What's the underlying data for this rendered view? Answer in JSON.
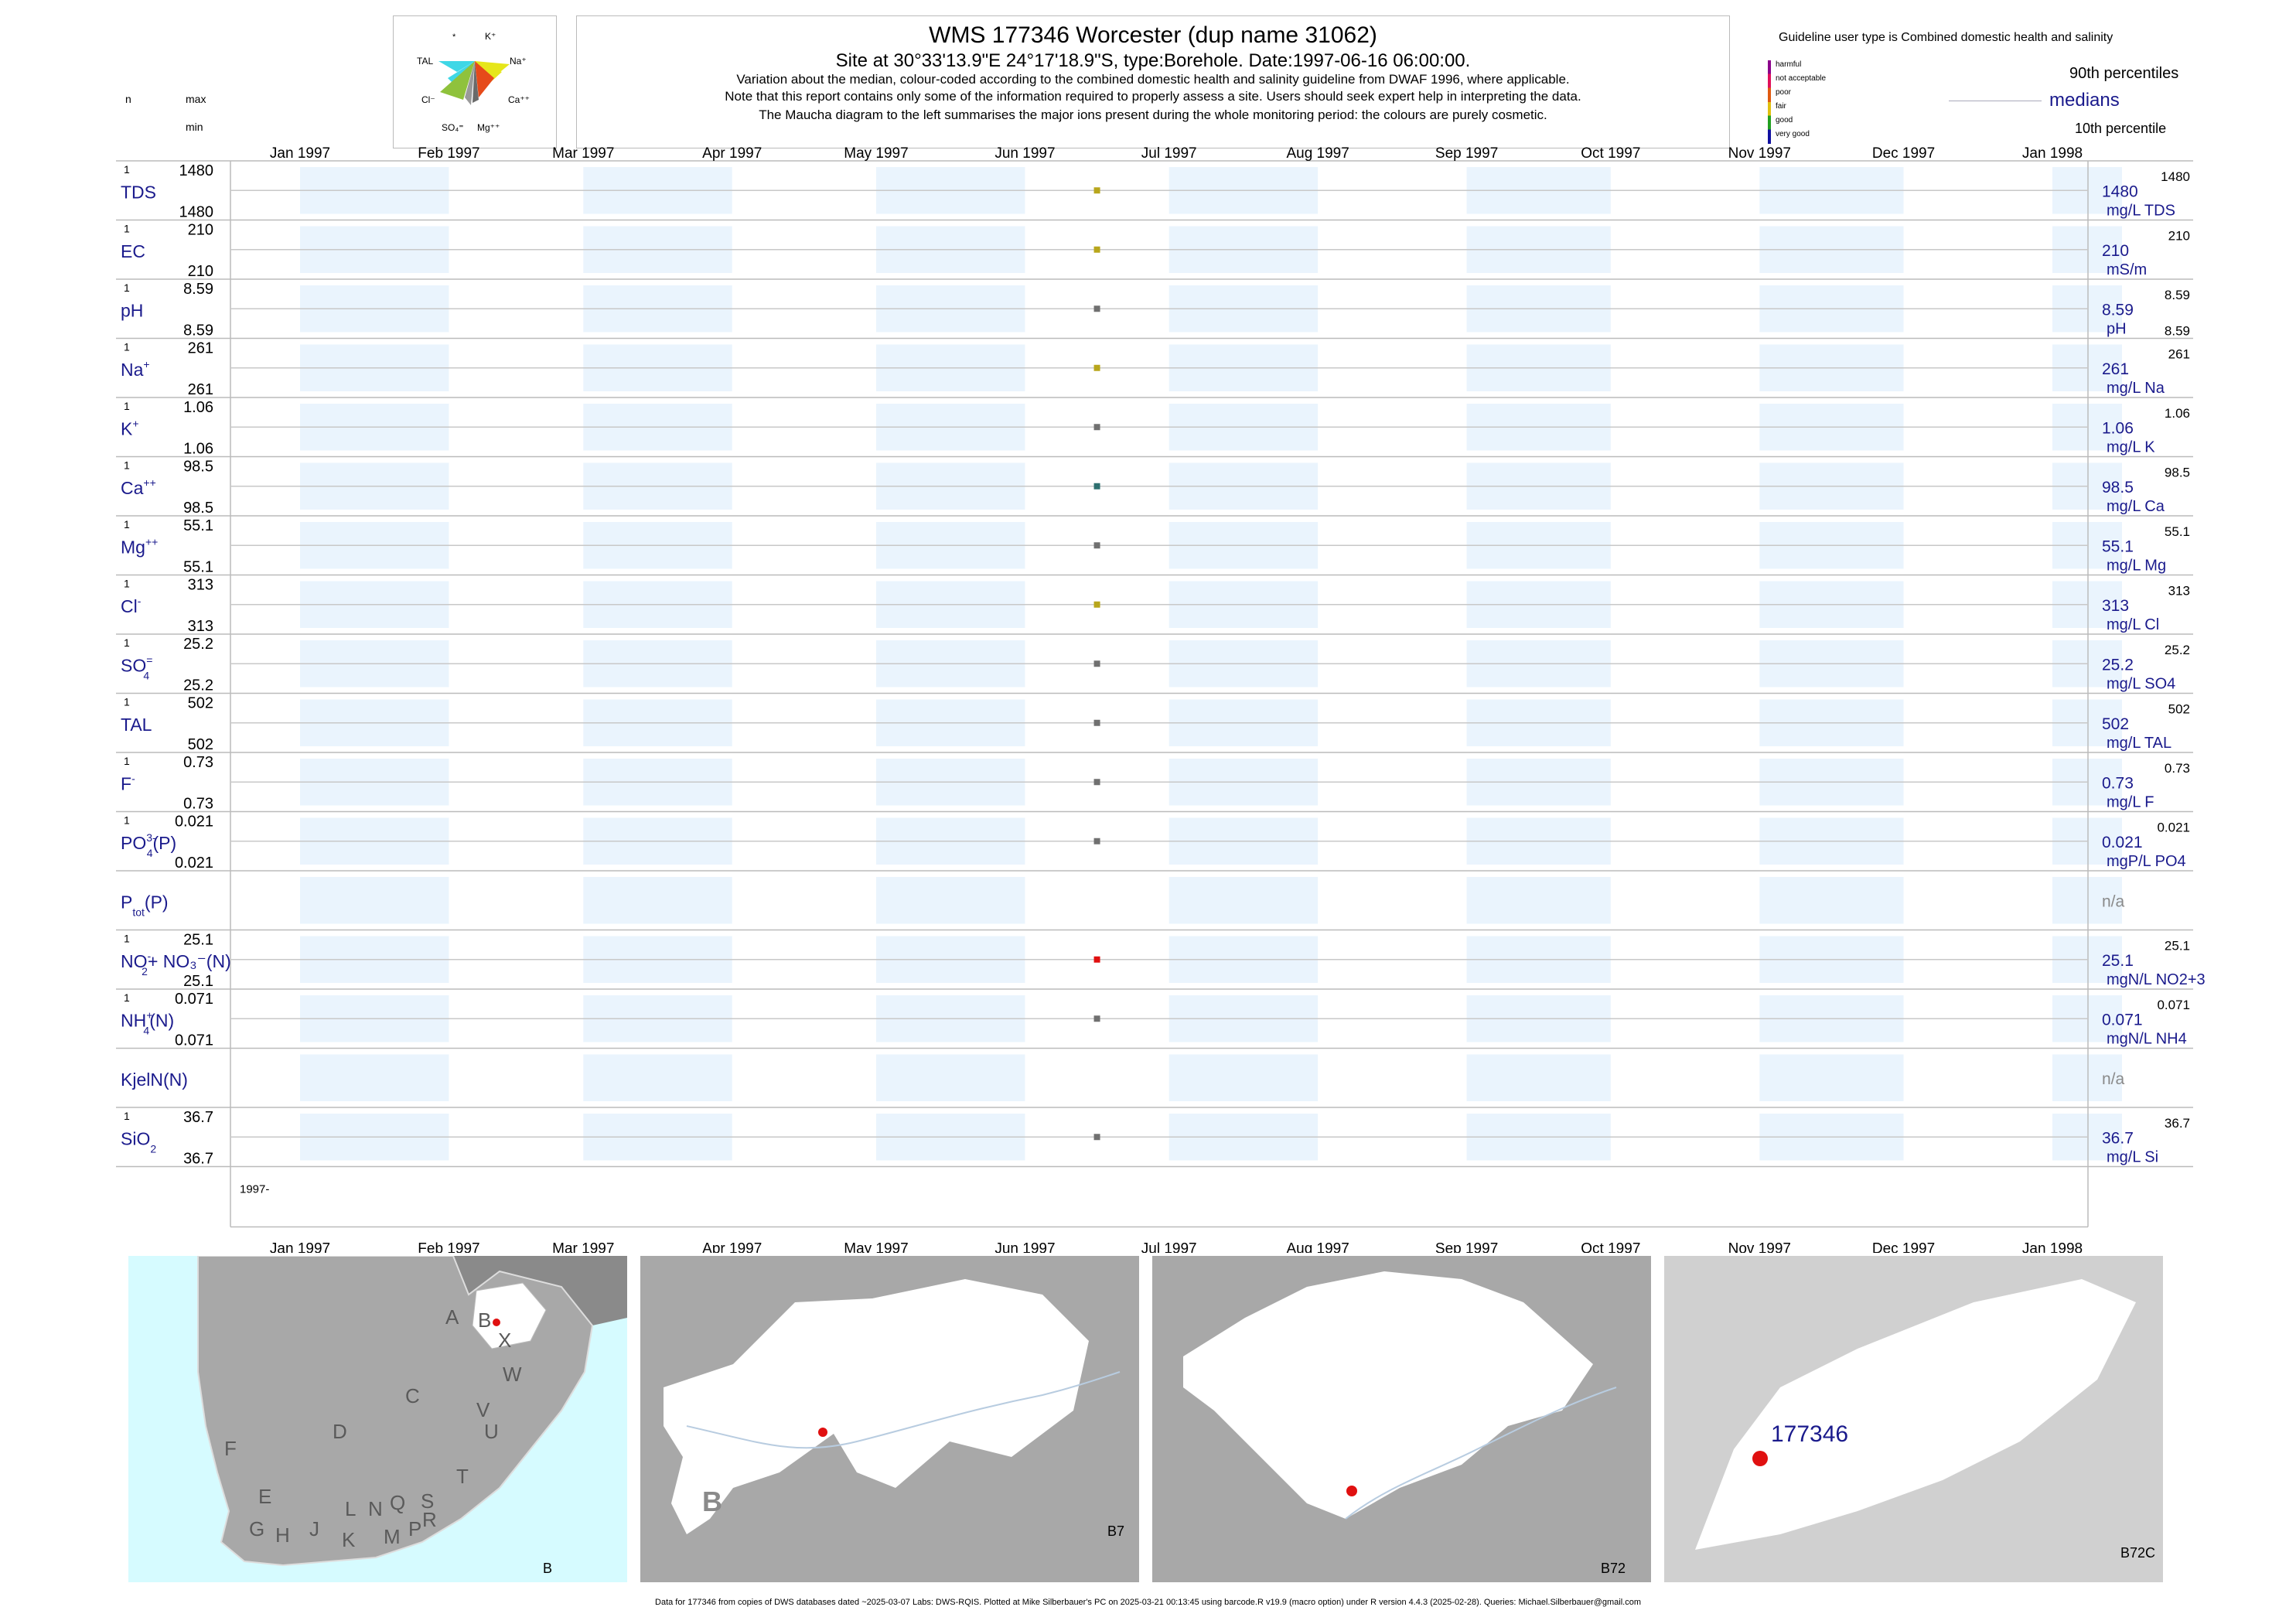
{
  "header": {
    "title": "WMS 177346  Worcester (dup name 31062)",
    "site_line": "Site at 30°33'13.9\"E 24°17'18.9\"S, type:Borehole. Date:1997-06-16 06:00:00.",
    "note1": "Variation about the median,  colour-coded according to the combined domestic health and salinity guideline from DWAF 1996, where applicable.",
    "note2": "Note that this report contains only some of the information required to properly assess a site. Users should seek expert help in interpreting the data.",
    "note3": "The Maucha diagram to the left summarises the major ions present during the whole monitoring period: the colours are purely cosmetic."
  },
  "left_header": {
    "n": "n",
    "max": "max",
    "min": "min"
  },
  "maucha": {
    "labels": [
      "*",
      "K⁺",
      "TAL",
      "Na⁺",
      "Cl⁻",
      "Ca⁺⁺",
      "SO₄⁼",
      "Mg⁺⁺"
    ],
    "colors": {
      "tal": "#3fd7e6",
      "na": "#e6e61a",
      "cl": "#8fc23c",
      "ca": "#e64a1a",
      "so4": "#9a9a9a",
      "mg": "#6a6a6a"
    }
  },
  "legend": {
    "guideline": "Guideline user type is Combined domestic health and salinity",
    "classes": [
      {
        "label": "harmful",
        "color": "#8b008b"
      },
      {
        "label": "not acceptable",
        "color": "#e0105a"
      },
      {
        "label": "poor",
        "color": "#e05a10"
      },
      {
        "label": "fair",
        "color": "#e0c010"
      },
      {
        "label": "good",
        "color": "#22a020"
      },
      {
        "label": "very good",
        "color": "#1010a0"
      }
    ],
    "p90": "90th percentiles",
    "medians": "medians",
    "p10": "10th percentile"
  },
  "chart_data": {
    "type": "scatter",
    "title": "WMS 177346  Worcester (dup name 31062)",
    "x_ticks": [
      "Jan 1997",
      "Feb 1997",
      "Mar 1997",
      "Apr 1997",
      "May 1997",
      "Jun 1997",
      "Jul 1997",
      "Aug 1997",
      "Sep 1997",
      "Oct 1997",
      "Nov 1997",
      "Dec 1997",
      "Jan 1998"
    ],
    "x_range": [
      "1997-01-01",
      "1998-01-01"
    ],
    "sample_date": "1997-06-16",
    "bottom_year_label": "1997-",
    "series": [
      {
        "name": "TDS",
        "sup": "",
        "sub": "",
        "n": "1",
        "max": "1480",
        "min": "1480",
        "value": 1480,
        "right_value": "1480",
        "right_top": "1480",
        "right_bottom": "",
        "unit": "mg/L TDS",
        "color": "#b8a61c"
      },
      {
        "name": "EC",
        "sup": "",
        "sub": "",
        "n": "1",
        "max": "210",
        "min": "210",
        "value": 210,
        "right_value": "210",
        "right_top": "210",
        "right_bottom": "",
        "unit": "mS/m",
        "color": "#b8a61c"
      },
      {
        "name": "pH",
        "sup": "",
        "sub": "",
        "n": "1",
        "max": "8.59",
        "min": "8.59",
        "value": 8.59,
        "right_value": "8.59",
        "right_top": "8.59",
        "right_bottom": "8.59",
        "unit": "pH",
        "color": "#707070"
      },
      {
        "name": "Na",
        "sup": "+",
        "sub": "",
        "n": "1",
        "max": "261",
        "min": "261",
        "value": 261,
        "right_value": "261",
        "right_top": "261",
        "right_bottom": "",
        "unit": "mg/L Na",
        "color": "#b8a61c"
      },
      {
        "name": "K",
        "sup": "+",
        "sub": "",
        "n": "1",
        "max": "1.06",
        "min": "1.06",
        "value": 1.06,
        "right_value": "1.06",
        "right_top": "1.06",
        "right_bottom": "",
        "unit": "mg/L K",
        "color": "#707070"
      },
      {
        "name": "Ca",
        "sup": "++",
        "sub": "",
        "n": "1",
        "max": "98.5",
        "min": "98.5",
        "value": 98.5,
        "right_value": "98.5",
        "right_top": "98.5",
        "right_bottom": "",
        "unit": "mg/L Ca",
        "color": "#2e7070"
      },
      {
        "name": "Mg",
        "sup": "++",
        "sub": "",
        "n": "1",
        "max": "55.1",
        "min": "55.1",
        "value": 55.1,
        "right_value": "55.1",
        "right_top": "55.1",
        "right_bottom": "",
        "unit": "mg/L Mg",
        "color": "#707070"
      },
      {
        "name": "Cl",
        "sup": "-",
        "sub": "",
        "n": "1",
        "max": "313",
        "min": "313",
        "value": 313,
        "right_value": "313",
        "right_top": "313",
        "right_bottom": "",
        "unit": "mg/L Cl",
        "color": "#b8a61c"
      },
      {
        "name": "SO",
        "sup": "=",
        "sub": "4",
        "n": "1",
        "max": "25.2",
        "min": "25.2",
        "value": 25.2,
        "right_value": "25.2",
        "right_top": "25.2",
        "right_bottom": "",
        "unit": "mg/L SO4",
        "color": "#707070"
      },
      {
        "name": "TAL",
        "sup": "",
        "sub": "",
        "n": "1",
        "max": "502",
        "min": "502",
        "value": 502,
        "right_value": "502",
        "right_top": "502",
        "right_bottom": "",
        "unit": "mg/L TAL",
        "color": "#707070"
      },
      {
        "name": "F",
        "sup": "-",
        "sub": "",
        "n": "1",
        "max": "0.73",
        "min": "0.73",
        "value": 0.73,
        "right_value": "0.73",
        "right_top": "0.73",
        "right_bottom": "",
        "unit": "mg/L F",
        "color": "#707070"
      },
      {
        "name": "PO",
        "sup": "3-",
        "sub": "4",
        "tail": "(P)",
        "n": "1",
        "max": "0.021",
        "min": "0.021",
        "value": 0.021,
        "right_value": "0.021",
        "right_top": "0.021",
        "right_bottom": "",
        "unit": "mgP/L PO4",
        "color": "#707070"
      },
      {
        "name": "P",
        "sup": "",
        "sub": "tot",
        "tail": "(P)",
        "n": "",
        "max": "",
        "min": "",
        "value": null,
        "right_value": "n/a",
        "right_top": "",
        "right_bottom": "",
        "unit": "",
        "color": ""
      },
      {
        "name": "NO",
        "sup": "-",
        "sub": "2",
        "tail": "+ NO₃⁻(N)",
        "n": "1",
        "max": "25.1",
        "min": "25.1",
        "value": 25.1,
        "right_value": "25.1",
        "right_top": "25.1",
        "right_bottom": "",
        "unit": "mgN/L NO2+3",
        "color": "#e01010"
      },
      {
        "name": "NH",
        "sup": "+",
        "sub": "4",
        "tail": "(N)",
        "n": "1",
        "max": "0.071",
        "min": "0.071",
        "value": 0.071,
        "right_value": "0.071",
        "right_top": "0.071",
        "right_bottom": "",
        "unit": "mgN/L NH4",
        "color": "#707070"
      },
      {
        "name": "KjelN(N)",
        "sup": "",
        "sub": "",
        "n": "",
        "max": "",
        "min": "",
        "value": null,
        "right_value": "n/a",
        "right_top": "",
        "right_bottom": "",
        "unit": "",
        "color": ""
      },
      {
        "name": "SiO",
        "sup": "",
        "sub": "2",
        "n": "1",
        "max": "36.7",
        "min": "36.7",
        "value": 36.7,
        "right_value": "36.7",
        "right_top": "36.7",
        "right_bottom": "",
        "unit": "mg/L Si",
        "color": "#707070"
      }
    ]
  },
  "maps": {
    "panel1_regions": [
      "A",
      "B",
      "X",
      "W",
      "C",
      "V",
      "U",
      "D",
      "T",
      "F",
      "E",
      "L",
      "N",
      "Q",
      "S",
      "R",
      "G",
      "H",
      "J",
      "K",
      "M",
      "P"
    ],
    "panel1_label": "B",
    "panel2_big": "B",
    "panel2_label": "B7",
    "panel3_label": "B72",
    "panel4_site": "177346",
    "panel4_label": "B72C"
  },
  "footer": "Data for 177346 from copies of DWS databases dated ~2025-03-07 Labs: DWS-RQIS. Plotted at Mike Silberbauer's PC on 2025-03-21 00:13:45 using barcode.R v19.9 (macro option) under R version 4.4.3 (2025-02-28). Queries: Michael.Silberbauer@gmail.com"
}
